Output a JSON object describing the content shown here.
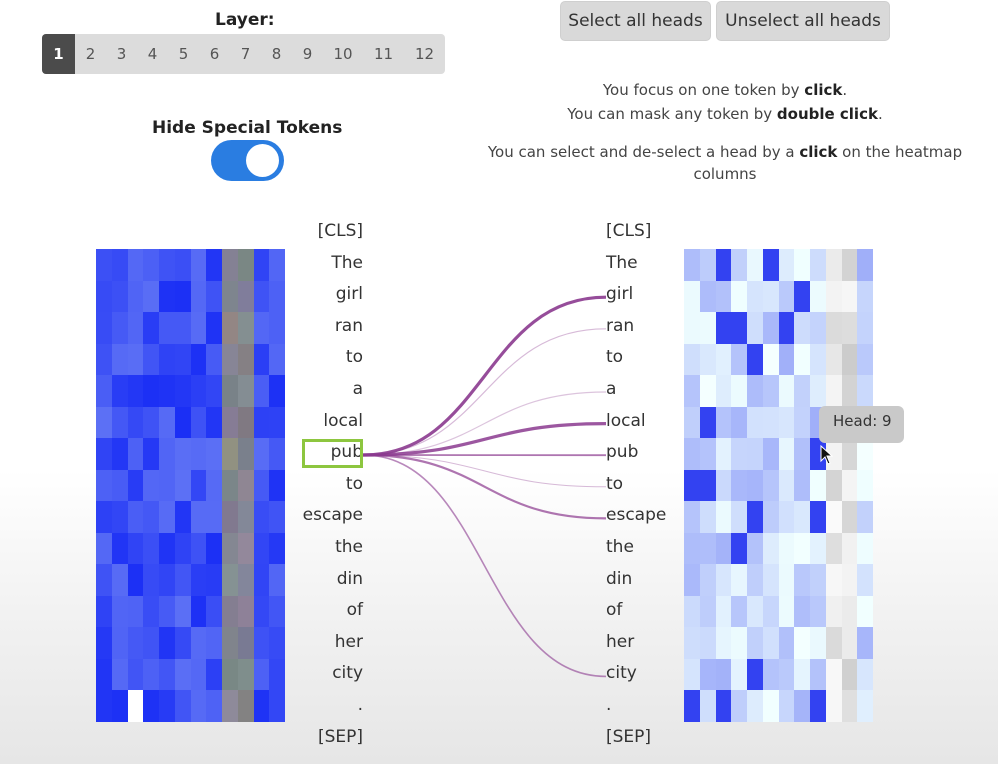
{
  "layer": {
    "label": "Layer:",
    "options": [
      "1",
      "2",
      "3",
      "4",
      "5",
      "6",
      "7",
      "8",
      "9",
      "10",
      "11",
      "12"
    ],
    "selected": "1"
  },
  "buttons": {
    "select_all": "Select all heads",
    "unselect_all": "Unselect all heads"
  },
  "hide_special_tokens": {
    "label": "Hide Special Tokens",
    "enabled": true
  },
  "instructions": {
    "focus": {
      "pre": "You focus on one token by ",
      "bold": "click",
      "post": "."
    },
    "mask": {
      "pre": "You can mask any token by ",
      "bold": "double click",
      "post": "."
    },
    "select": {
      "pre": "You can select and de-select a head by a ",
      "bold": "click",
      "post": " on the heatmap columns"
    }
  },
  "tokens": [
    "[CLS]",
    "The",
    "girl",
    "ran",
    "to",
    "a",
    "local",
    "pub",
    "to",
    "escape",
    "the",
    "din",
    "of",
    "her",
    "city",
    ".",
    "[SEP]"
  ],
  "focused_token": "pub",
  "tooltip": "Head: 9",
  "colors": {
    "accent": "#2a7de1",
    "focus_box": "#8dc63f",
    "line": "#8b3a8f",
    "heat_blue": "#1a2ef5",
    "masked_gray": "#7a7a7a"
  }
}
